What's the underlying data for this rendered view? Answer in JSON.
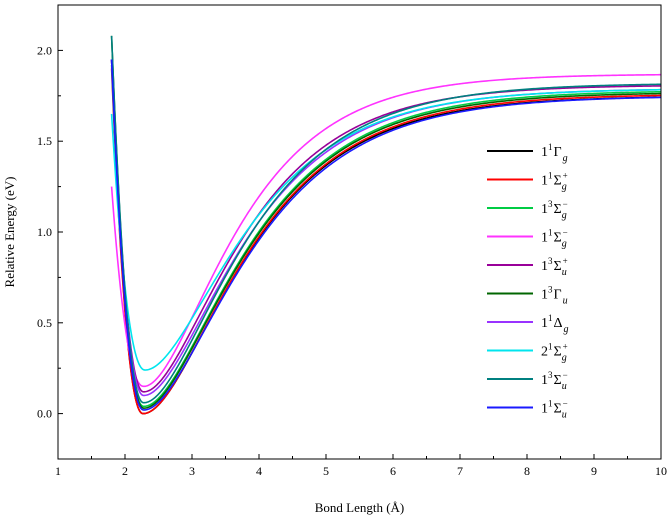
{
  "chart_data": {
    "type": "line",
    "title": "",
    "xlabel": "Bond Length (Å)",
    "ylabel": "Relative Energy (eV)",
    "xlim": [
      1,
      10
    ],
    "ylim": [
      -0.25,
      2.25
    ],
    "xticks": [
      1,
      2,
      3,
      4,
      5,
      6,
      7,
      8,
      9,
      10
    ],
    "yticks": [
      0.0,
      0.5,
      1.0,
      1.5,
      2.0
    ],
    "grid": false,
    "legend_position": "right-center",
    "series": [
      {
        "name": "1¹Γg",
        "label": {
          "n": "1",
          "spin": "1",
          "sym": "Γ",
          "sub": "g",
          "sup": ""
        },
        "color": "#000000",
        "x0": 1.8,
        "e_start": 1.95,
        "x_min": 2.27,
        "e_min": 0.0,
        "x_turn": 4.3,
        "e_inf": 1.75
      },
      {
        "name": "1¹Σg+",
        "label": {
          "n": "1",
          "spin": "1",
          "sym": "Σ",
          "sub": "g",
          "sup": "+"
        },
        "color": "#ff0000",
        "x0": 1.8,
        "e_start": 1.9,
        "x_min": 2.27,
        "e_min": 0.0,
        "x_turn": 4.3,
        "e_inf": 1.76
      },
      {
        "name": "1³Σg−",
        "label": {
          "n": "1",
          "spin": "3",
          "sym": "Σ",
          "sub": "g",
          "sup": "−"
        },
        "color": "#00cc44",
        "x0": 1.8,
        "e_start": 1.92,
        "x_min": 2.28,
        "e_min": 0.04,
        "x_turn": 4.3,
        "e_inf": 1.78
      },
      {
        "name": "1¹Σg−",
        "label": {
          "n": "1",
          "spin": "1",
          "sym": "Σ",
          "sub": "g",
          "sup": "−"
        },
        "color": "#ff33ff",
        "x0": 1.8,
        "e_start": 1.25,
        "x_min": 2.28,
        "e_min": 0.15,
        "x_turn": 4.1,
        "e_inf": 1.87
      },
      {
        "name": "1³Σu+",
        "label": {
          "n": "1",
          "spin": "3",
          "sym": "Σ",
          "sub": "u",
          "sup": "+"
        },
        "color": "#990099",
        "x0": 1.8,
        "e_start": 1.95,
        "x_min": 2.28,
        "e_min": 0.12,
        "x_turn": 4.2,
        "e_inf": 1.81
      },
      {
        "name": "1³Γu",
        "label": {
          "n": "1",
          "spin": "3",
          "sym": "Γ",
          "sub": "u",
          "sup": ""
        },
        "color": "#006600",
        "x0": 1.8,
        "e_start": 2.08,
        "x_min": 2.28,
        "e_min": 0.03,
        "x_turn": 4.3,
        "e_inf": 1.77
      },
      {
        "name": "1¹Δg",
        "label": {
          "n": "1",
          "spin": "1",
          "sym": "Δ",
          "sub": "g",
          "sup": ""
        },
        "color": "#9933ff",
        "x0": 1.8,
        "e_start": 1.95,
        "x_min": 2.28,
        "e_min": 0.1,
        "x_turn": 4.25,
        "e_inf": 1.79
      },
      {
        "name": "2¹Σg+",
        "label": {
          "n": "2",
          "spin": "1",
          "sym": "Σ",
          "sub": "g",
          "sup": "+"
        },
        "color": "#00e5ee",
        "x0": 1.8,
        "e_start": 1.65,
        "x_min": 2.3,
        "e_min": 0.24,
        "x_turn": 4.3,
        "e_inf": 1.79
      },
      {
        "name": "1³Σu−",
        "label": {
          "n": "1",
          "spin": "3",
          "sym": "Σ",
          "sub": "u",
          "sup": "−"
        },
        "color": "#008080",
        "x0": 1.8,
        "e_start": 2.08,
        "x_min": 2.28,
        "e_min": 0.06,
        "x_turn": 4.25,
        "e_inf": 1.82
      },
      {
        "name": "1¹Σu−",
        "label": {
          "n": "1",
          "spin": "1",
          "sym": "Σ",
          "sub": "u",
          "sup": "−"
        },
        "color": "#1a1aff",
        "x0": 1.8,
        "e_start": 1.95,
        "x_min": 2.28,
        "e_min": 0.02,
        "x_turn": 4.35,
        "e_inf": 1.75
      }
    ]
  }
}
